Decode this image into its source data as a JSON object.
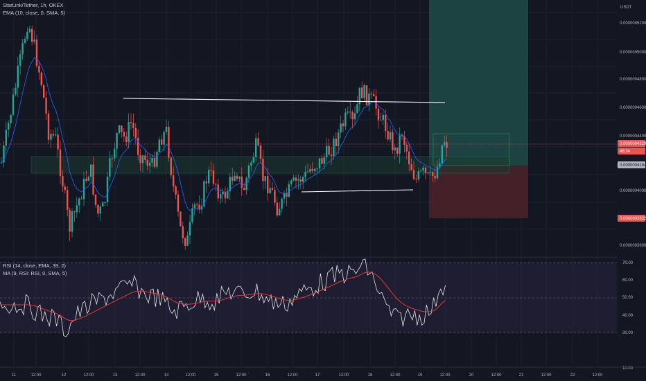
{
  "header": {
    "symbol": "StarLink/Tether, 1h, OKEX",
    "ema_legend": "EMA (10, close, 0, SMA, 5)"
  },
  "price_axis": {
    "currency": "USDT",
    "ticks": [
      "0.0000005200",
      "0.0000005000",
      "0.0000004800",
      "0.0000004600",
      "0.0000004400",
      "0.0000004000",
      "0.0000003600"
    ],
    "current_price_label": "0.0000004329",
    "countdown_label": "48:34",
    "entry_label": "0.0000004184",
    "stop_label": "0.0000003822"
  },
  "rsi_pane": {
    "rsi_legend": "RSI (14, close, EMA, 39, 2)",
    "ma_legend": "MA (9, RSI: RSI, 0, SMA, 5)",
    "ticks": [
      "70.00",
      "60.00",
      "50.00",
      "40.00",
      "30.00",
      "10.00"
    ]
  },
  "time_axis": {
    "ticks": [
      "11",
      "12:00",
      "12",
      "12:00",
      "13",
      "12:00",
      "14",
      "12:00",
      "15",
      "12:00",
      "16",
      "12:00",
      "17",
      "12:00",
      "18",
      "12:00",
      "19",
      "12:00",
      "20",
      "12:00",
      "21",
      "12:00",
      "22",
      "12:00"
    ]
  },
  "colors": {
    "background": "#131722",
    "up_candle": "#26a69a",
    "down_candle": "#ef5350",
    "ema_line": "#2962ff",
    "rsi_line": "#e6e6e6",
    "rsi_ma_line": "#e53935",
    "trendline": "#ffffff",
    "profit_zone": "#1f4b47",
    "loss_zone": "#4a2229",
    "support_zone": "#1c3a30"
  }
}
